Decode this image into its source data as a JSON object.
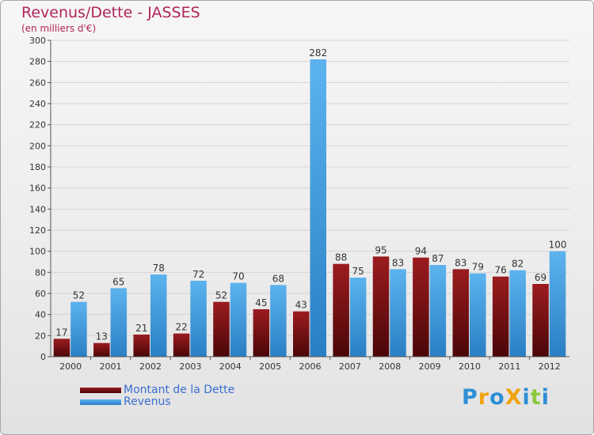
{
  "chart_data": {
    "type": "bar",
    "title": "Revenus/Dette - JASSES",
    "subtitle": "(en milliers d'€)",
    "xlabel": "",
    "ylabel": "",
    "ylim": [
      0,
      300
    ],
    "yticks": [
      0,
      20,
      40,
      60,
      80,
      100,
      120,
      140,
      160,
      180,
      200,
      220,
      240,
      260,
      280,
      300
    ],
    "grid": true,
    "legend_position": "bottom-left",
    "categories": [
      "2000",
      "2001",
      "2002",
      "2003",
      "2004",
      "2005",
      "2006",
      "2007",
      "2008",
      "2009",
      "2010",
      "2011",
      "2012"
    ],
    "series": [
      {
        "name": "Montant de la Dette",
        "color": "#7a0f12",
        "values": [
          17,
          13,
          21,
          22,
          52,
          45,
          43,
          88,
          95,
          94,
          83,
          76,
          69
        ]
      },
      {
        "name": "Revenus",
        "color": "#4da3e6",
        "values": [
          52,
          65,
          78,
          72,
          70,
          68,
          282,
          75,
          83,
          87,
          79,
          82,
          100
        ]
      }
    ]
  },
  "logo": {
    "text": "ProXiti",
    "letters": [
      {
        "ch": "P",
        "color": "#2e8fd6"
      },
      {
        "ch": "r",
        "color": "#f1a20f"
      },
      {
        "ch": "o",
        "color": "#2e8fd6"
      },
      {
        "ch": "X",
        "color": "#f1a20f"
      },
      {
        "ch": "i",
        "color": "#2e8fd6"
      },
      {
        "ch": "t",
        "color": "#8cc63f"
      },
      {
        "ch": "i",
        "color": "#2e8fd6"
      }
    ]
  }
}
